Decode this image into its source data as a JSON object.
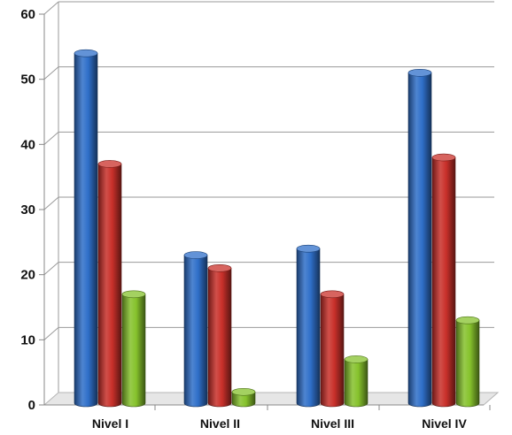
{
  "chart_data": {
    "type": "bar",
    "title": "",
    "xlabel": "",
    "ylabel": "",
    "categories": [
      "Nivel I",
      "Nivel II",
      "Nivel III",
      "Nivel IV"
    ],
    "series": [
      {
        "values": [
          54,
          23,
          24,
          51
        ],
        "color": "#2f6fc9"
      },
      {
        "values": [
          37,
          21,
          17,
          38
        ],
        "color": "#c9302a"
      },
      {
        "values": [
          17,
          2,
          7,
          13
        ],
        "color": "#86c22c"
      }
    ],
    "ylim": [
      0,
      60
    ],
    "yticks": [
      0,
      10,
      20,
      30,
      40,
      50,
      60
    ],
    "grid": true,
    "legend": "none",
    "style": "3d-cylinder"
  }
}
